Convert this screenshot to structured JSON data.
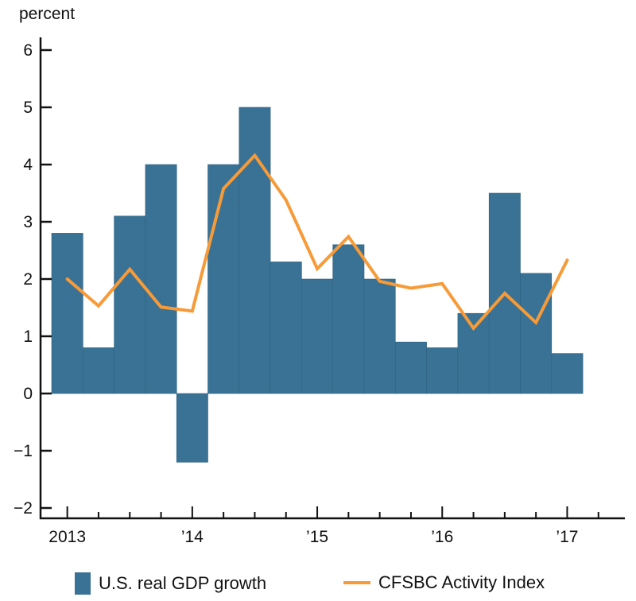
{
  "chart_data": {
    "type": "bar+line",
    "title": "",
    "ylabel": "percent",
    "xlabel": "",
    "ylim": [
      -2,
      6
    ],
    "yticks": [
      "6",
      "5",
      "4",
      "3",
      "2",
      "1",
      "0",
      "−1",
      "−2"
    ],
    "ytick_values": [
      6,
      5,
      4,
      3,
      2,
      1,
      0,
      -1,
      -2
    ],
    "xtick_labels": [
      "2013",
      "’14",
      "’15",
      "’16",
      "’17"
    ],
    "grid": false,
    "legend_position": "bottom",
    "x": [
      "2013Q1",
      "2013Q2",
      "2013Q3",
      "2013Q4",
      "2014Q1",
      "2014Q2",
      "2014Q3",
      "2014Q4",
      "2015Q1",
      "2015Q2",
      "2015Q3",
      "2015Q4",
      "2016Q1",
      "2016Q2",
      "2016Q3",
      "2016Q4",
      "2017Q1"
    ],
    "series": [
      {
        "name": "U.S. real GDP growth",
        "type": "bar",
        "color": "#397294",
        "values": [
          2.8,
          0.8,
          3.1,
          4.0,
          -1.2,
          4.0,
          5.0,
          2.3,
          2.0,
          2.6,
          2.0,
          0.9,
          0.8,
          1.4,
          3.5,
          2.1,
          0.7
        ]
      },
      {
        "name": "CFSBC Activity Index",
        "type": "line",
        "color": "#F79A38",
        "values": [
          2.0,
          1.53,
          2.17,
          1.51,
          1.44,
          3.58,
          4.16,
          3.38,
          2.18,
          2.74,
          1.96,
          1.84,
          1.92,
          1.14,
          1.75,
          1.24,
          2.33
        ]
      }
    ]
  }
}
